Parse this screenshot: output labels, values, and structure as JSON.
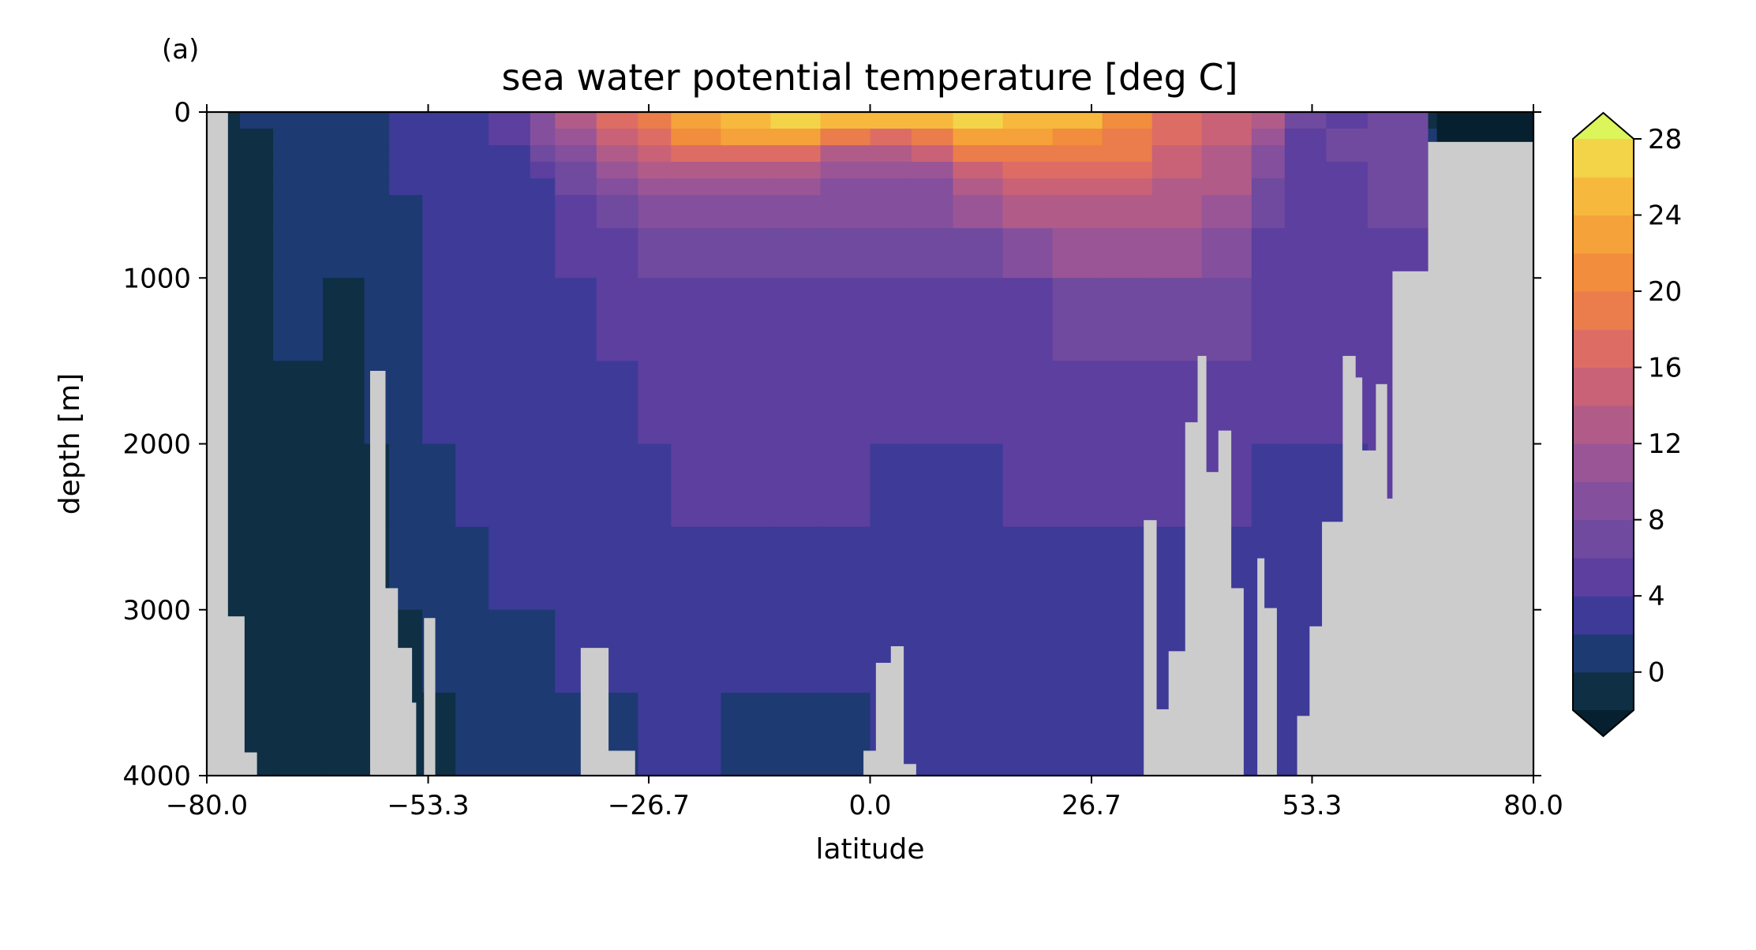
{
  "panel_label": "(a)",
  "chart_data": {
    "type": "heatmap",
    "title": "sea water potential temperature [deg C]",
    "xlabel": "latitude",
    "ylabel": "depth [m]",
    "xlim": [
      -80.0,
      80.0
    ],
    "ylim": [
      4000,
      0
    ],
    "xticks": [
      "−80.0",
      "−53.3",
      "−26.7",
      "0.0",
      "26.7",
      "53.3",
      "80.0"
    ],
    "xtick_values": [
      -80.0,
      -53.3,
      -26.7,
      0.0,
      26.7,
      53.3,
      80.0
    ],
    "yticks": [
      "0",
      "1000",
      "2000",
      "3000",
      "4000"
    ],
    "ytick_values": [
      0,
      1000,
      2000,
      3000,
      4000
    ],
    "land_color": "#cccccc",
    "colorbar": {
      "levels": [
        -2,
        0,
        2,
        4,
        6,
        8,
        10,
        12,
        14,
        16,
        18,
        20,
        22,
        24,
        26,
        28
      ],
      "colors": [
        "#0f2f45",
        "#1d3a72",
        "#3e3a98",
        "#5c3f9e",
        "#6f4a9f",
        "#844f9d",
        "#9a5596",
        "#b15c88",
        "#c96277",
        "#dd6d64",
        "#ea7d4b",
        "#f18d3c",
        "#f5a23a",
        "#f6b93e",
        "#f3d449"
      ],
      "under_color": "#06202f",
      "over_color": "#dcf55a",
      "extend": "both",
      "tick_labels": [
        "0",
        "4",
        "8",
        "12",
        "16",
        "20",
        "24",
        "28"
      ],
      "tick_values": [
        0,
        4,
        8,
        12,
        16,
        20,
        24,
        28
      ]
    },
    "grid": false,
    "depth_levels": [
      0,
      100,
      200,
      300,
      400,
      500,
      700,
      1000,
      1500,
      2000,
      2500,
      3000,
      3500,
      4000
    ],
    "land_top_depth": [
      {
        "lat": [
          -80.0,
          -77.5
        ],
        "depth": 0
      },
      {
        "lat": [
          -77.5,
          -75.5
        ],
        "depth": 3040
      },
      {
        "lat": [
          -75.5,
          -74.0
        ],
        "depth": 3860
      },
      {
        "lat": [
          -60.3,
          -58.5
        ],
        "depth": 1560
      },
      {
        "lat": [
          -58.5,
          -57.0
        ],
        "depth": 2870
      },
      {
        "lat": [
          -57.0,
          -55.3
        ],
        "depth": 3230
      },
      {
        "lat": [
          -55.3,
          -54.8
        ],
        "depth": 3560
      },
      {
        "lat": [
          -53.8,
          -52.5
        ],
        "depth": 3050
      },
      {
        "lat": [
          -34.9,
          -31.6
        ],
        "depth": 3230
      },
      {
        "lat": [
          -31.6,
          -28.4
        ],
        "depth": 3850
      },
      {
        "lat": [
          -0.8,
          0.7
        ],
        "depth": 3850
      },
      {
        "lat": [
          0.7,
          2.5
        ],
        "depth": 3320
      },
      {
        "lat": [
          2.5,
          4.0
        ],
        "depth": 3220
      },
      {
        "lat": [
          4.0,
          5.5
        ],
        "depth": 3930
      },
      {
        "lat": [
          33.0,
          34.5
        ],
        "depth": 2460
      },
      {
        "lat": [
          34.5,
          36.0
        ],
        "depth": 3600
      },
      {
        "lat": [
          36.0,
          38.0
        ],
        "depth": 3250
      },
      {
        "lat": [
          38.0,
          39.5
        ],
        "depth": 1870
      },
      {
        "lat": [
          39.5,
          40.5
        ],
        "depth": 1470
      },
      {
        "lat": [
          40.5,
          42.0
        ],
        "depth": 2170
      },
      {
        "lat": [
          42.0,
          43.5
        ],
        "depth": 1920
      },
      {
        "lat": [
          43.5,
          45.0
        ],
        "depth": 2870
      },
      {
        "lat": [
          46.7,
          47.5
        ],
        "depth": 2690
      },
      {
        "lat": [
          47.5,
          49.0
        ],
        "depth": 2990
      },
      {
        "lat": [
          51.5,
          53.0
        ],
        "depth": 3640
      },
      {
        "lat": [
          53.0,
          54.5
        ],
        "depth": 3100
      },
      {
        "lat": [
          54.5,
          57.0
        ],
        "depth": 2470
      },
      {
        "lat": [
          57.0,
          58.5
        ],
        "depth": 1470
      },
      {
        "lat": [
          58.5,
          59.3
        ],
        "depth": 1600
      },
      {
        "lat": [
          59.3,
          61.0
        ],
        "depth": 2040
      },
      {
        "lat": [
          61.0,
          62.3
        ],
        "depth": 1640
      },
      {
        "lat": [
          62.3,
          63.0
        ],
        "depth": 2330
      },
      {
        "lat": [
          63.0,
          67.3
        ],
        "depth": 960
      },
      {
        "lat": [
          67.3,
          80.0
        ],
        "depth": 180
      }
    ],
    "temperature_profiles": [
      {
        "lat": [
          -78.5,
          -76.0
        ],
        "values": [
          -1.5,
          -1.5,
          -1.5,
          -1.5,
          -1.5,
          -1.5,
          -1.5,
          -1.5,
          -1.5,
          -1.5,
          -1.5,
          -1.5,
          -1.5
        ]
      },
      {
        "lat": [
          -76.0,
          -72.0
        ],
        "values": [
          0.5,
          -1.0,
          -1.0,
          -1.0,
          -1.0,
          -1.0,
          -1.0,
          -1.0,
          -1.0,
          -1.0,
          -1.0,
          -1.0,
          -1.0
        ]
      },
      {
        "lat": [
          -72.0,
          -66.0
        ],
        "values": [
          1.0,
          0.8,
          0.8,
          0.8,
          0.8,
          0.8,
          0.8,
          0.8,
          -1.0,
          -1.0,
          -1.0,
          -1.0,
          -1.0
        ]
      },
      {
        "lat": [
          -66.0,
          -61.0
        ],
        "values": [
          1.0,
          1.0,
          1.0,
          1.0,
          1.0,
          1.0,
          1.0,
          -1.0,
          -1.0,
          -1.0,
          -1.0,
          -1.0,
          -1.0
        ]
      },
      {
        "lat": [
          -61.0,
          -58.0
        ],
        "values": [
          1.0,
          1.0,
          1.0,
          1.0,
          1.0,
          1.0,
          1.0,
          1.0,
          1.0,
          -1.0,
          -1.0,
          -1.0,
          -1.0
        ]
      },
      {
        "lat": [
          -58.0,
          -54.0
        ],
        "values": [
          2.5,
          2.5,
          2.5,
          2.5,
          2.5,
          1.0,
          1.0,
          1.0,
          1.0,
          1.0,
          1.0,
          -1.0,
          -1.0
        ]
      },
      {
        "lat": [
          -54.0,
          -50.0
        ],
        "values": [
          3.0,
          3.0,
          3.0,
          2.5,
          2.5,
          2.5,
          2.5,
          2.5,
          2.5,
          1.0,
          1.0,
          1.0,
          -1.0
        ]
      },
      {
        "lat": [
          -50.0,
          -46.0
        ],
        "values": [
          3.0,
          3.0,
          3.0,
          3.0,
          3.0,
          3.0,
          3.0,
          3.0,
          2.5,
          2.5,
          1.0,
          1.0,
          1.0
        ]
      },
      {
        "lat": [
          -46.0,
          -41.0
        ],
        "values": [
          5.0,
          5.0,
          3.0,
          3.0,
          3.0,
          3.0,
          3.0,
          3.0,
          3.0,
          3.0,
          2.5,
          1.0,
          1.0
        ]
      },
      {
        "lat": [
          -41.0,
          -38.0
        ],
        "values": [
          9.0,
          9.0,
          7.0,
          5.0,
          3.0,
          3.0,
          3.0,
          3.0,
          3.0,
          3.0,
          3.0,
          1.0,
          1.0
        ]
      },
      {
        "lat": [
          -38.0,
          -33.0
        ],
        "values": [
          12.0,
          11.0,
          9.0,
          7.0,
          7.0,
          5.0,
          5.0,
          3.0,
          3.0,
          3.0,
          3.0,
          3.0,
          1.0
        ]
      },
      {
        "lat": [
          -33.0,
          -28.0
        ],
        "values": [
          16.0,
          14.0,
          12.0,
          10.0,
          8.0,
          7.0,
          5.0,
          5.0,
          3.0,
          3.0,
          3.0,
          3.0,
          1.0
        ]
      },
      {
        "lat": [
          -28.0,
          -24.0
        ],
        "values": [
          19.0,
          17.0,
          15.0,
          13.0,
          10.0,
          8.0,
          6.0,
          5.0,
          5.0,
          3.0,
          3.0,
          3.0,
          3.0
        ]
      },
      {
        "lat": [
          -24.0,
          -18.0
        ],
        "values": [
          23.0,
          20.0,
          16.0,
          13.0,
          11.0,
          9.0,
          7.0,
          5.0,
          5.0,
          5.0,
          3.0,
          3.0,
          3.0
        ]
      },
      {
        "lat": [
          -18.0,
          -12.0
        ],
        "values": [
          25.0,
          22.0,
          17.0,
          13.0,
          11.0,
          9.0,
          6.0,
          5.0,
          5.0,
          5.0,
          3.0,
          3.0,
          1.0
        ]
      },
      {
        "lat": [
          -12.0,
          -6.0
        ],
        "values": [
          26.0,
          22.0,
          16.0,
          12.0,
          10.0,
          8.0,
          6.0,
          5.0,
          5.0,
          5.0,
          3.0,
          3.0,
          1.0
        ]
      },
      {
        "lat": [
          -6.0,
          0.0
        ],
        "values": [
          25.0,
          19.0,
          13.0,
          11.0,
          9.0,
          8.0,
          6.0,
          5.0,
          5.0,
          5.0,
          3.0,
          3.0,
          1.0
        ]
      },
      {
        "lat": [
          0.0,
          5.0
        ],
        "values": [
          24.0,
          17.0,
          13.0,
          11.0,
          9.0,
          8.0,
          6.0,
          5.0,
          5.0,
          3.0,
          3.0,
          3.0,
          3.0
        ]
      },
      {
        "lat": [
          5.0,
          10.0
        ],
        "values": [
          25.0,
          19.0,
          14.0,
          11.0,
          9.0,
          8.0,
          6.0,
          5.0,
          5.0,
          3.0,
          3.0,
          3.0,
          3.0
        ]
      },
      {
        "lat": [
          10.0,
          16.0
        ],
        "values": [
          26.0,
          23.0,
          18.0,
          15.0,
          12.0,
          10.0,
          7.0,
          5.0,
          5.0,
          3.0,
          3.0,
          3.0,
          3.0
        ]
      },
      {
        "lat": [
          16.0,
          22.0
        ],
        "values": [
          25.0,
          22.0,
          19.0,
          16.0,
          14.0,
          12.0,
          9.0,
          5.0,
          5.0,
          5.0,
          3.0,
          3.0,
          3.0
        ]
      },
      {
        "lat": [
          22.0,
          28.0
        ],
        "values": [
          24.0,
          21.0,
          19.0,
          17.0,
          15.0,
          13.0,
          10.0,
          7.0,
          5.0,
          5.0,
          3.0,
          3.0,
          3.0
        ]
      },
      {
        "lat": [
          28.0,
          34.0
        ],
        "values": [
          21.0,
          19.0,
          18.0,
          16.0,
          15.0,
          13.0,
          11.0,
          7.0,
          5.0,
          5.0,
          3.0,
          3.0,
          3.0
        ]
      },
      {
        "lat": [
          34.0,
          40.0
        ],
        "values": [
          17.0,
          16.0,
          15.0,
          14.0,
          13.0,
          12.0,
          10.0,
          7.0,
          5.0,
          5.0,
          3.0,
          3.0,
          3.0
        ]
      },
      {
        "lat": [
          40.0,
          46.0
        ],
        "values": [
          14.0,
          14.0,
          13.0,
          13.0,
          12.0,
          11.0,
          9.0,
          7.0,
          5.0,
          5.0,
          3.0,
          3.0,
          3.0
        ]
      },
      {
        "lat": [
          46.0,
          50.0
        ],
        "values": [
          12.0,
          11.0,
          9.0,
          8.0,
          7.0,
          7.0,
          5.0,
          5.0,
          5.0,
          3.0,
          3.0,
          3.0,
          3.0
        ]
      },
      {
        "lat": [
          50.0,
          55.0
        ],
        "values": [
          7.0,
          5.0,
          5.0,
          5.0,
          5.0,
          5.0,
          5.0,
          5.0,
          5.0,
          3.0,
          3.0,
          3.0,
          3.0
        ]
      },
      {
        "lat": [
          55.0,
          60.0
        ],
        "values": [
          5.0,
          7.0,
          7.0,
          5.0,
          5.0,
          5.0,
          5.0,
          5.0,
          5.0,
          3.0,
          3.0,
          3.0,
          3.0
        ]
      },
      {
        "lat": [
          60.0,
          65.0
        ],
        "values": [
          7.0,
          7.0,
          7.0,
          7.0,
          7.0,
          7.0,
          5.0,
          5.0,
          5.0,
          5.0,
          3.0,
          3.0,
          3.0
        ]
      },
      {
        "lat": [
          65.0,
          67.3
        ],
        "values": [
          7.0,
          7.0,
          7.0,
          7.0,
          7.0,
          7.0,
          5.0,
          5.0,
          5.0,
          5.0,
          3.0,
          3.0,
          3.0
        ]
      },
      {
        "lat": [
          67.3,
          68.3
        ],
        "values": [
          -1.5,
          1.0,
          1.0,
          1.0,
          1.0,
          1.0,
          1.0,
          1.0,
          1.0,
          1.0,
          1.0,
          1.0,
          1.0
        ]
      }
    ]
  }
}
